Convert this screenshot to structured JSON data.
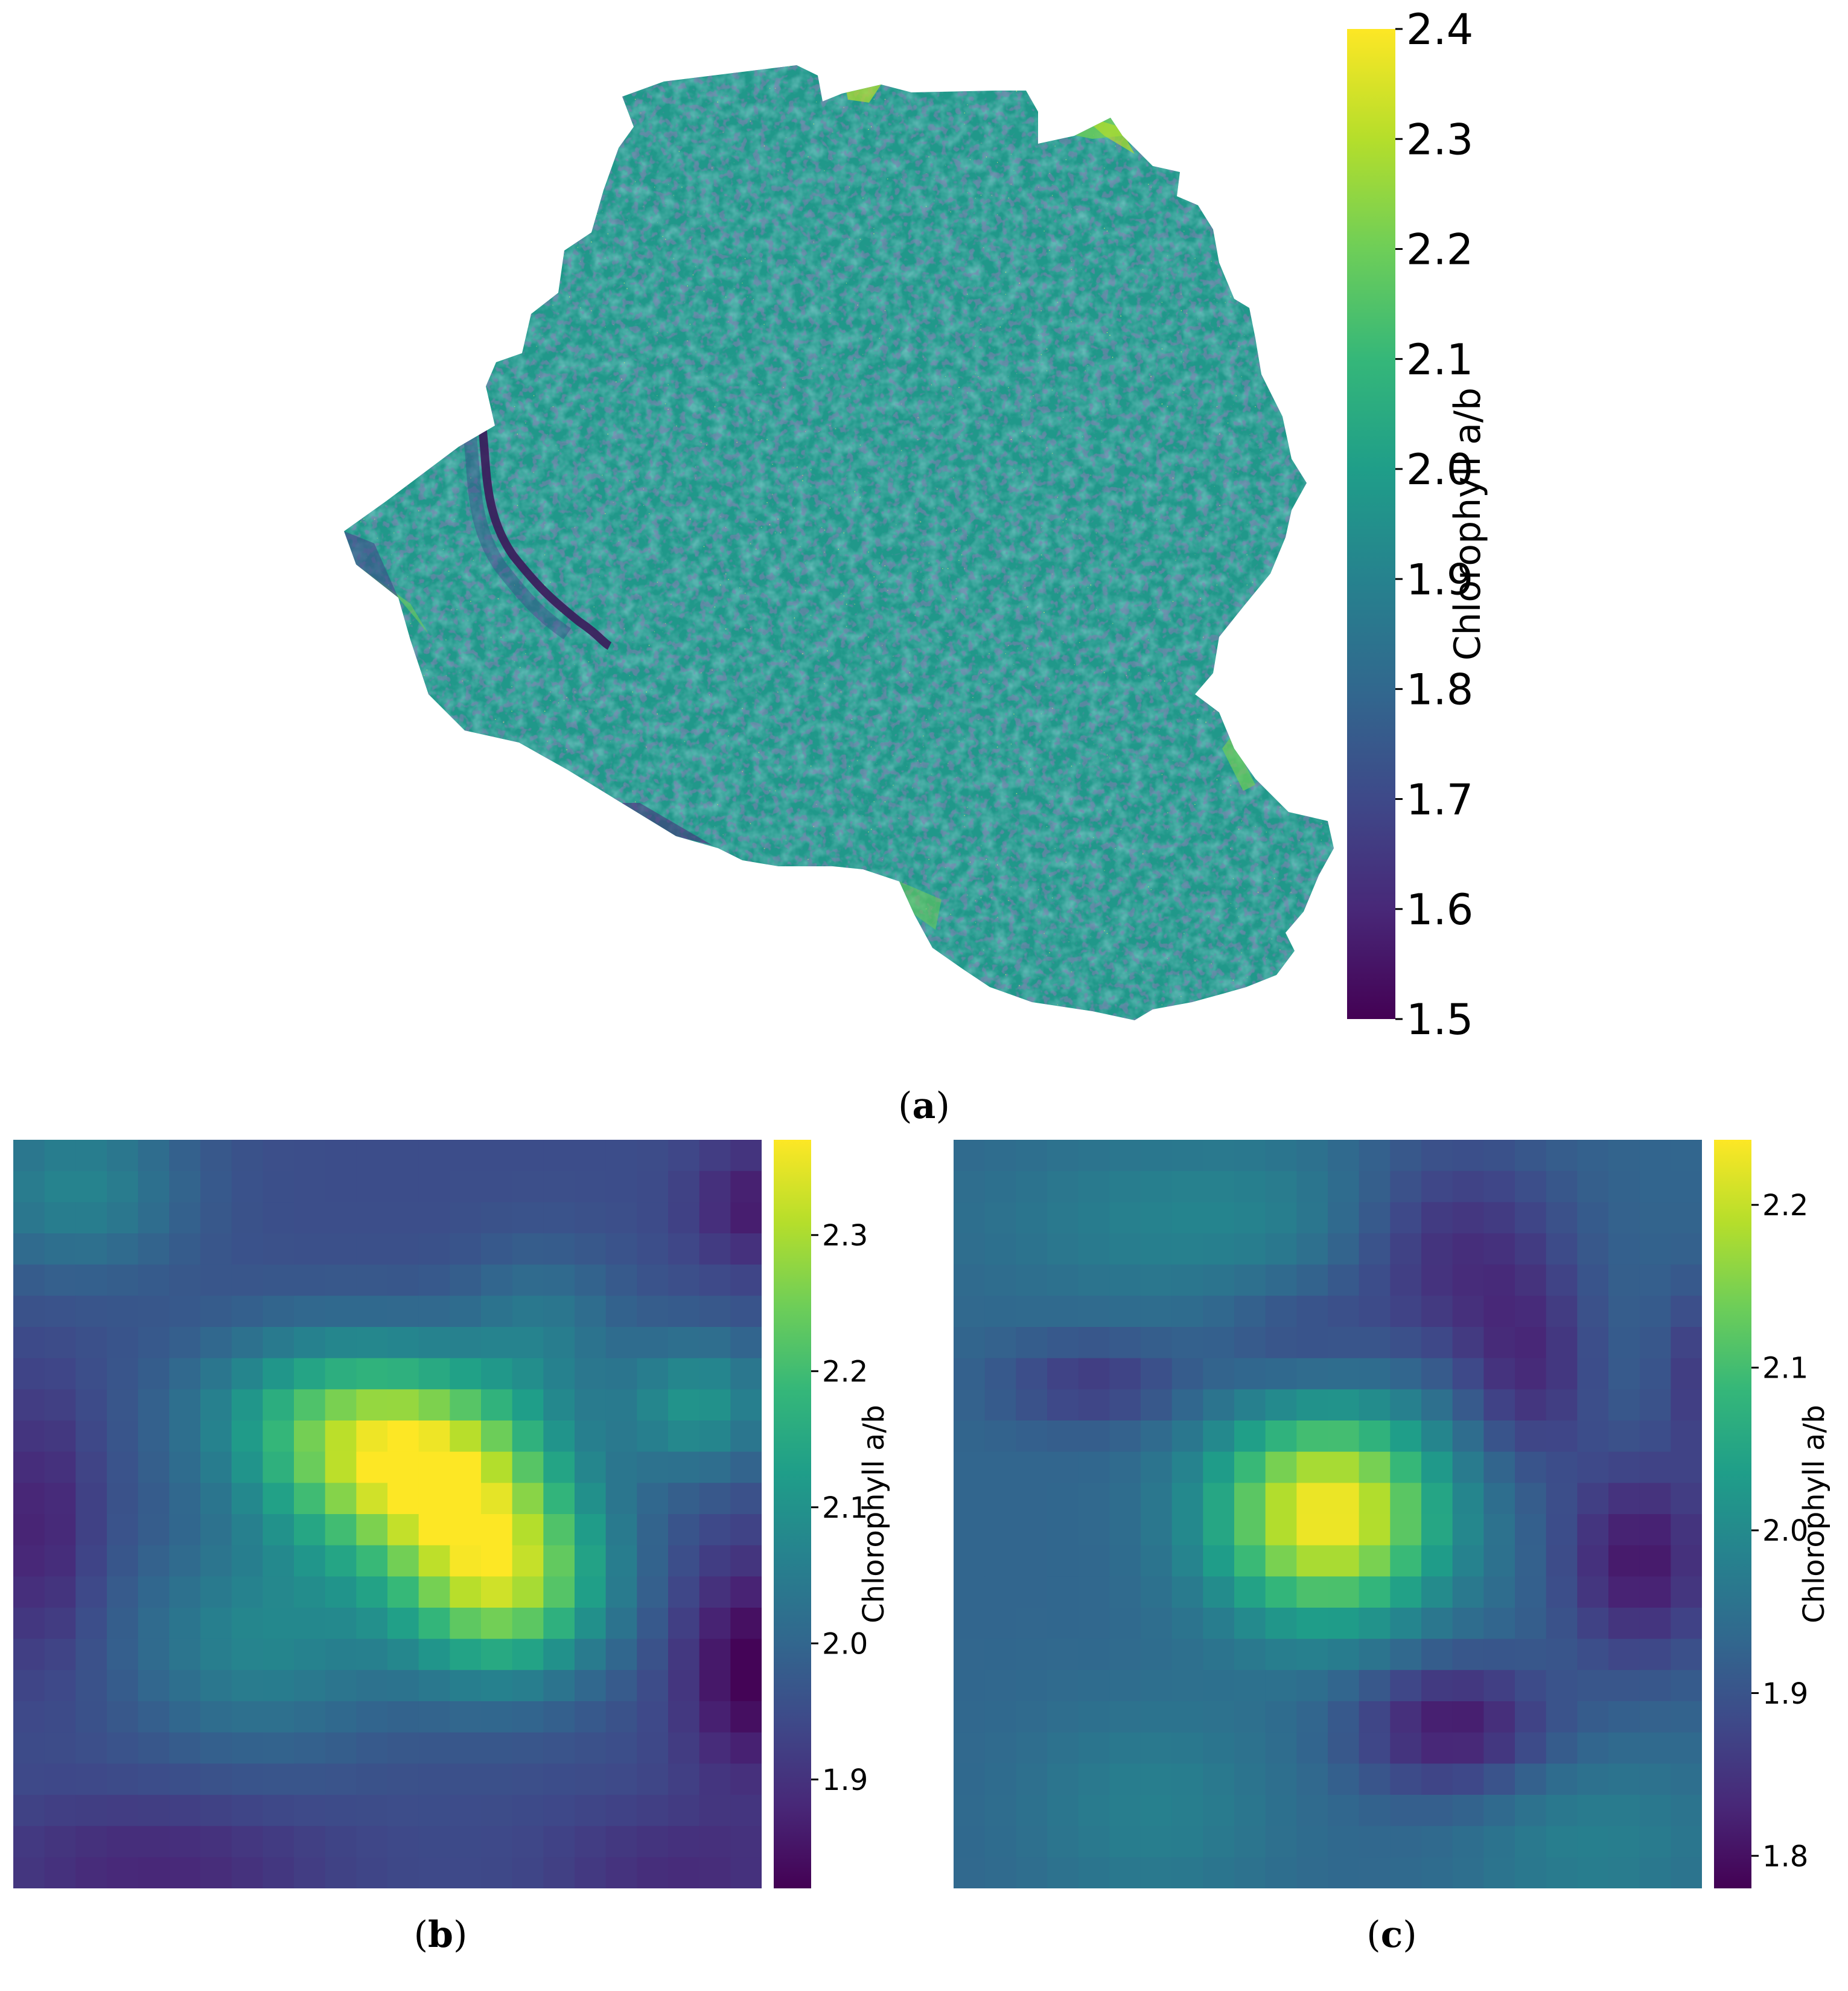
{
  "colormap": {
    "name": "viridis",
    "stops": [
      "#440154",
      "#482878",
      "#3e4989",
      "#31688e",
      "#26828e",
      "#1f9e89",
      "#35b779",
      "#6ece58",
      "#b5de2b",
      "#fde725"
    ]
  },
  "panels": [
    {
      "id": "a",
      "caption_label": "a"
    },
    {
      "id": "b",
      "caption_label": "b"
    },
    {
      "id": "c",
      "caption_label": "c"
    }
  ],
  "chart_data": [
    {
      "type": "heatmap",
      "panel": "a",
      "title": "",
      "description_kind": "orthomosaic map",
      "colorbar": {
        "label": "Chlorophyll a/b",
        "vmin": 1.5,
        "vmax": 2.4,
        "ticks": [
          1.5,
          1.6,
          1.7,
          1.8,
          1.9,
          2.0,
          2.1,
          2.2,
          2.3,
          2.4
        ],
        "tick_labels": [
          "1.5",
          "1.6",
          "1.7",
          "1.8",
          "1.9",
          "2.0",
          "2.1",
          "2.2",
          "2.3",
          "2.4"
        ]
      },
      "typical_value": 1.98,
      "value_spread": 0.12
    },
    {
      "type": "heatmap",
      "panel": "b",
      "title": "",
      "grid_size": [
        24,
        24
      ],
      "colorbar": {
        "label": "Chlorophyll a/b",
        "vmin": 1.82,
        "vmax": 2.37,
        "ticks": [
          1.9,
          2.0,
          2.1,
          2.2,
          2.3
        ],
        "tick_labels": [
          "1.9",
          "2.0",
          "2.1",
          "2.2",
          "2.3"
        ]
      },
      "base_value": 1.95,
      "features": [
        {
          "cx": 12.5,
          "cy": 10.0,
          "amp": 0.37,
          "sx": 3.0,
          "sy": 2.2
        },
        {
          "cx": 15.2,
          "cy": 13.7,
          "amp": 0.33,
          "sx": 2.4,
          "sy": 2.2
        },
        {
          "cx": 9.0,
          "cy": 8.2,
          "amp": 0.14,
          "sx": 3.0,
          "sy": 2.0
        },
        {
          "cx": 7.5,
          "cy": 15.5,
          "amp": 0.12,
          "sx": 3.0,
          "sy": 2.5
        },
        {
          "cx": 21.5,
          "cy": 8.0,
          "amp": 0.15,
          "sx": 1.8,
          "sy": 1.6
        },
        {
          "cx": 16.5,
          "cy": 5.5,
          "amp": 0.08,
          "sx": 1.8,
          "sy": 1.8
        },
        {
          "cx": 1.5,
          "cy": 1.0,
          "amp": 0.12,
          "sx": 2.5,
          "sy": 2.0
        },
        {
          "cx": 23.2,
          "cy": 16.5,
          "amp": -0.13,
          "sx": 1.6,
          "sy": 2.5
        },
        {
          "cx": 23.3,
          "cy": 1.6,
          "amp": -0.09,
          "sx": 1.4,
          "sy": 1.4
        },
        {
          "cx": 4.0,
          "cy": 22.8,
          "amp": -0.07,
          "sx": 4.0,
          "sy": 1.5
        },
        {
          "cx": 0.4,
          "cy": 12.0,
          "amp": -0.08,
          "sx": 1.2,
          "sy": 3.0
        },
        {
          "cx": 21.0,
          "cy": 23.0,
          "amp": -0.06,
          "sx": 3.0,
          "sy": 1.5
        }
      ]
    },
    {
      "type": "heatmap",
      "panel": "c",
      "title": "",
      "grid_size": [
        24,
        24
      ],
      "colorbar": {
        "label": "Chlorophyll a/b",
        "vmin": 1.78,
        "vmax": 2.24,
        "ticks": [
          1.8,
          1.9,
          2.0,
          2.1,
          2.2
        ],
        "tick_labels": [
          "1.8",
          "1.9",
          "2.0",
          "2.1",
          "2.2"
        ]
      },
      "base_value": 1.93,
      "features": [
        {
          "cx": 11.5,
          "cy": 11.5,
          "amp": 0.31,
          "sx": 2.6,
          "sy": 2.4
        },
        {
          "cx": 8.0,
          "cy": 2.0,
          "amp": 0.06,
          "sx": 5.0,
          "sy": 2.0
        },
        {
          "cx": 6.0,
          "cy": 21.0,
          "amp": 0.05,
          "sx": 3.0,
          "sy": 2.5
        },
        {
          "cx": 20.0,
          "cy": 22.0,
          "amp": 0.05,
          "sx": 3.0,
          "sy": 2.0
        },
        {
          "cx": 15.5,
          "cy": 18.3,
          "amp": -0.12,
          "sx": 2.2,
          "sy": 1.5
        },
        {
          "cx": 21.5,
          "cy": 13.0,
          "amp": -0.12,
          "sx": 1.8,
          "sy": 2.3
        },
        {
          "cx": 15.5,
          "cy": 3.0,
          "amp": -0.1,
          "sx": 2.5,
          "sy": 2.5
        },
        {
          "cx": 18.0,
          "cy": 7.0,
          "amp": -0.08,
          "sx": 1.5,
          "sy": 2.2
        },
        {
          "cx": 4.0,
          "cy": 7.3,
          "amp": -0.07,
          "sx": 2.0,
          "sy": 1.0
        },
        {
          "cx": 23.5,
          "cy": 7.0,
          "amp": -0.07,
          "sx": 1.0,
          "sy": 2.0
        },
        {
          "cx": 10.5,
          "cy": 6.0,
          "amp": -0.05,
          "sx": 2.0,
          "sy": 1.5
        }
      ]
    }
  ]
}
